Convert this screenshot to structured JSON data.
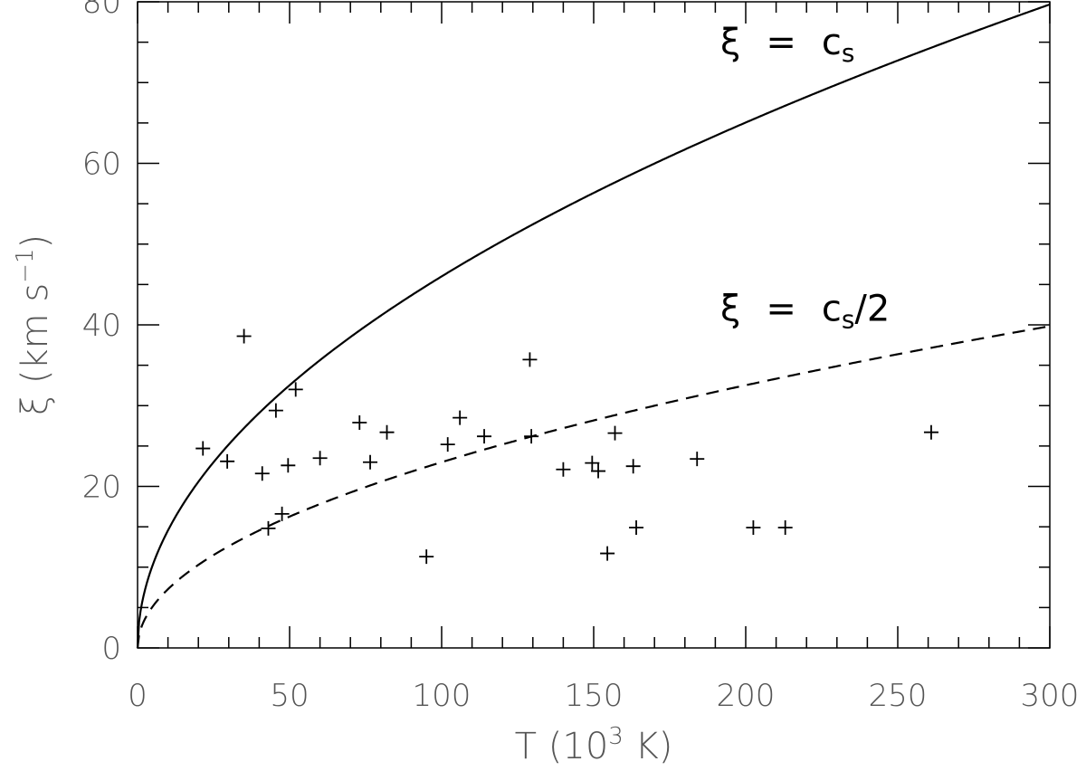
{
  "chart_data": {
    "type": "scatter",
    "title": "",
    "xlabel": {
      "base": "T (10",
      "sup": "3",
      "rest": " K)"
    },
    "ylabel": {
      "base": "ξ (km s",
      "sup": "−1",
      "rest": ")"
    },
    "xlim": [
      0,
      300
    ],
    "ylim": [
      0,
      80
    ],
    "xticks": [
      0,
      50,
      100,
      150,
      200,
      250,
      300
    ],
    "xtick_labels": [
      "0",
      "50",
      "100",
      "150",
      "200",
      "250",
      "300"
    ],
    "yticks": [
      0,
      20,
      40,
      60,
      80
    ],
    "ytick_labels": [
      "0",
      "20",
      "40",
      "60",
      "80"
    ],
    "grid": false,
    "curves": [
      {
        "expr": "c_s",
        "k": 4.6,
        "style": "solid",
        "color": "#000000"
      },
      {
        "expr": "c_s/2",
        "k": 2.3,
        "style": "dashed",
        "color": "#000000"
      }
    ],
    "annotations": [
      {
        "symbol": "ξ",
        "eq": "=",
        "main": "c",
        "sub": "s",
        "tail": "",
        "x": 200,
        "y": 73.5
      },
      {
        "symbol": "ξ",
        "eq": "=",
        "main": "c",
        "sub": "s",
        "tail": "/2",
        "x": 200,
        "y": 40.5
      }
    ],
    "points": [
      {
        "x": 21.5,
        "y": 24.7
      },
      {
        "x": 29.5,
        "y": 23.1
      },
      {
        "x": 35,
        "y": 38.6
      },
      {
        "x": 41,
        "y": 21.6
      },
      {
        "x": 43,
        "y": 14.8
      },
      {
        "x": 45.5,
        "y": 29.4
      },
      {
        "x": 47.5,
        "y": 16.6
      },
      {
        "x": 49.5,
        "y": 22.6
      },
      {
        "x": 52,
        "y": 32.0
      },
      {
        "x": 60,
        "y": 23.5
      },
      {
        "x": 73,
        "y": 27.9
      },
      {
        "x": 76.5,
        "y": 23.0
      },
      {
        "x": 82,
        "y": 26.7
      },
      {
        "x": 95,
        "y": 11.3
      },
      {
        "x": 102,
        "y": 25.2
      },
      {
        "x": 106,
        "y": 28.5
      },
      {
        "x": 114,
        "y": 26.2
      },
      {
        "x": 129,
        "y": 35.7
      },
      {
        "x": 129.5,
        "y": 26.2
      },
      {
        "x": 140,
        "y": 22.1
      },
      {
        "x": 149.5,
        "y": 22.9
      },
      {
        "x": 151.5,
        "y": 21.9
      },
      {
        "x": 154.5,
        "y": 11.7
      },
      {
        "x": 157,
        "y": 26.6
      },
      {
        "x": 163,
        "y": 22.5
      },
      {
        "x": 164,
        "y": 14.9
      },
      {
        "x": 184,
        "y": 23.4
      },
      {
        "x": 202.5,
        "y": 14.9
      },
      {
        "x": 213,
        "y": 14.9
      },
      {
        "x": 261,
        "y": 26.7
      }
    ]
  }
}
